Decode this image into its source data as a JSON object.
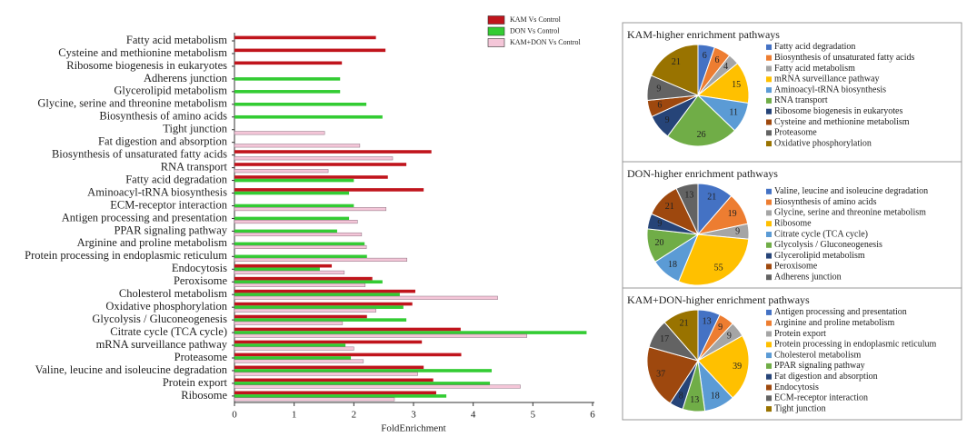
{
  "chart_data": [
    {
      "type": "bar",
      "orientation": "horizontal",
      "xlabel": "FoldEnrichment",
      "xlim": [
        0,
        6
      ],
      "xticks": [
        0,
        1,
        2,
        3,
        4,
        5,
        6
      ],
      "grid": false,
      "categories": [
        "Fatty acid metabolism",
        "Cysteine and methionine metabolism",
        "Ribosome biogenesis in eukaryotes",
        "Adherens junction",
        "Glycerolipid metabolism",
        "Glycine, serine and threonine metabolism",
        "Biosynthesis of amino acids",
        "Tight junction",
        "Fat digestion and absorption",
        "Biosynthesis of unsaturated fatty acids",
        "RNA transport",
        "Fatty acid degradation",
        "Aminoacyl-tRNA biosynthesis",
        "ECM-receptor interaction",
        "Antigen processing and presentation",
        "PPAR signaling pathway",
        "Arginine and proline metabolism",
        "Protein processing in endoplasmic reticulum",
        "Endocytosis",
        "Peroxisome",
        "Cholesterol metabolism",
        "Oxidative phosphorylation",
        "Glycolysis / Gluconeogenesis",
        "Citrate cycle (TCA cycle)",
        "mRNA surveillance pathway",
        "Proteasome",
        "Valine, leucine and isoleucine degradation",
        "Protein export",
        "Ribosome"
      ],
      "series": [
        {
          "name": "KAM Vs Control",
          "color": "#c0141c",
          "values": [
            2.37,
            2.53,
            1.8,
            null,
            null,
            null,
            null,
            null,
            null,
            3.3,
            2.88,
            2.57,
            3.17,
            null,
            null,
            null,
            null,
            null,
            1.63,
            2.31,
            3.03,
            2.98,
            2.22,
            3.79,
            3.14,
            3.8,
            3.17,
            3.33,
            3.38
          ]
        },
        {
          "name": "DON Vs Control",
          "color": "#33cc33",
          "values": [
            null,
            null,
            null,
            1.77,
            1.77,
            2.21,
            2.48,
            null,
            null,
            null,
            null,
            2.0,
            1.92,
            2.0,
            1.92,
            1.72,
            2.18,
            2.22,
            1.43,
            2.48,
            2.77,
            2.83,
            2.88,
            5.9,
            1.86,
            1.95,
            4.31,
            4.28,
            3.55
          ]
        },
        {
          "name": "KAM+DON Vs Control",
          "color": "#f4c6d8",
          "values": [
            null,
            null,
            null,
            null,
            null,
            null,
            null,
            1.51,
            2.1,
            2.65,
            1.57,
            null,
            null,
            2.54,
            2.06,
            2.13,
            2.21,
            2.89,
            1.84,
            2.19,
            4.41,
            2.37,
            1.81,
            4.9,
            2.0,
            2.16,
            3.07,
            4.79,
            2.68
          ]
        }
      ]
    },
    {
      "type": "pie",
      "title": "KAM-higher enrichment pathways",
      "categories": [
        "Fatty acid degradation",
        "Biosynthesis of unsaturated fatty acids",
        "Fatty acid metabolism",
        "mRNA surveillance pathway",
        "Aminoacyl-tRNA biosynthesis",
        "RNA transport",
        "Ribosome biogenesis in eukaryotes",
        "Cysteine and methionine metabolism",
        "Proteasome",
        "Oxidative phosphorylation"
      ],
      "values": [
        6,
        6,
        4,
        15,
        11,
        26,
        9,
        6,
        9,
        21
      ],
      "colors": [
        "#4472c4",
        "#ed7d31",
        "#a5a5a5",
        "#ffc000",
        "#5b9bd5",
        "#70ad47",
        "#264478",
        "#9e480e",
        "#636363",
        "#997300"
      ]
    },
    {
      "type": "pie",
      "title": "DON-higher enrichment  pathways",
      "categories": [
        "Valine, leucine and isoleucine degradation",
        "Biosynthesis of amino acids",
        "Glycine, serine and threonine metabolism",
        "Ribosome",
        "Citrate cycle (TCA cycle)",
        "Glycolysis / Gluconeogenesis",
        "Glycerolipid metabolism",
        "Peroxisome",
        "Adherens junction"
      ],
      "values": [
        21,
        19,
        9,
        55,
        18,
        20,
        9,
        21,
        13
      ],
      "colors": [
        "#4472c4",
        "#ed7d31",
        "#a5a5a5",
        "#ffc000",
        "#5b9bd5",
        "#70ad47",
        "#264478",
        "#9e480e",
        "#636363"
      ]
    },
    {
      "type": "pie",
      "title": "KAM+DON-higher enrichment  pathways",
      "categories": [
        "Antigen processing and presentation",
        "Arginine and proline metabolism",
        "Protein export",
        "Protein processing in endoplasmic reticulum",
        "Cholesterol metabolism",
        "PPAR signaling pathway",
        "Fat digestion and absorption",
        "Endocytosis",
        "ECM-receptor interaction",
        "Tight junction"
      ],
      "values": [
        13,
        9,
        9,
        39,
        18,
        13,
        8,
        37,
        17,
        21
      ],
      "colors": [
        "#4472c4",
        "#ed7d31",
        "#a5a5a5",
        "#ffc000",
        "#5b9bd5",
        "#70ad47",
        "#264478",
        "#9e480e",
        "#636363",
        "#997300"
      ]
    }
  ]
}
